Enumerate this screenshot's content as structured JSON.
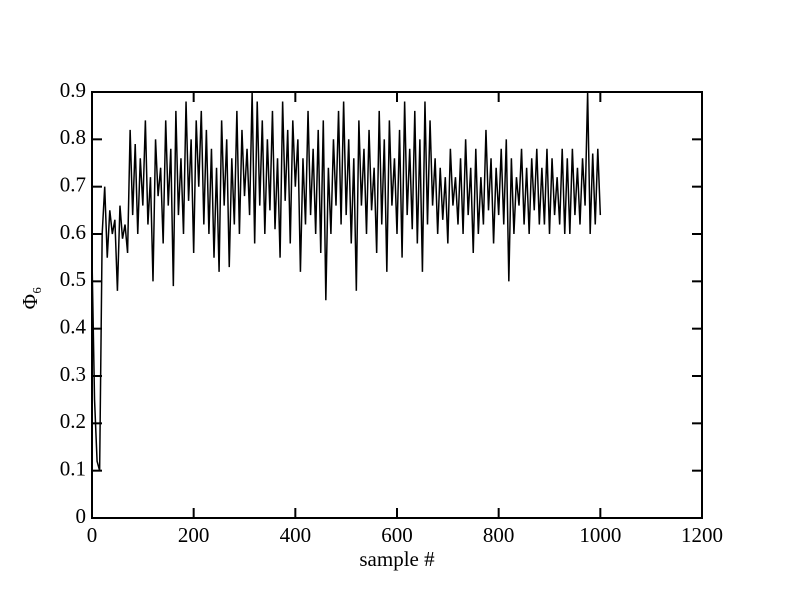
{
  "chart_data": {
    "type": "line",
    "xlabel": "sample #",
    "ylabel": "Φ₆",
    "xlim": [
      0,
      1200
    ],
    "xticks": [
      0,
      200,
      400,
      600,
      800,
      1000,
      1200
    ],
    "ylim": [
      0,
      0.9
    ],
    "yticks": [
      0,
      0.1,
      0.2,
      0.3,
      0.4,
      0.5,
      0.6,
      0.7,
      0.8,
      0.9
    ],
    "x": [
      0,
      5,
      10,
      15,
      20,
      25,
      30,
      35,
      40,
      45,
      50,
      55,
      60,
      65,
      70,
      75,
      80,
      85,
      90,
      95,
      100,
      105,
      110,
      115,
      120,
      125,
      130,
      135,
      140,
      145,
      150,
      155,
      160,
      165,
      170,
      175,
      180,
      185,
      190,
      195,
      200,
      205,
      210,
      215,
      220,
      225,
      230,
      235,
      240,
      245,
      250,
      255,
      260,
      265,
      270,
      275,
      280,
      285,
      290,
      295,
      300,
      305,
      310,
      315,
      320,
      325,
      330,
      335,
      340,
      345,
      350,
      355,
      360,
      365,
      370,
      375,
      380,
      385,
      390,
      395,
      400,
      405,
      410,
      415,
      420,
      425,
      430,
      435,
      440,
      445,
      450,
      455,
      460,
      465,
      470,
      475,
      480,
      485,
      490,
      495,
      500,
      505,
      510,
      515,
      520,
      525,
      530,
      535,
      540,
      545,
      550,
      555,
      560,
      565,
      570,
      575,
      580,
      585,
      590,
      595,
      600,
      605,
      610,
      615,
      620,
      625,
      630,
      635,
      640,
      645,
      650,
      655,
      660,
      665,
      670,
      675,
      680,
      685,
      690,
      695,
      700,
      705,
      710,
      715,
      720,
      725,
      730,
      735,
      740,
      745,
      750,
      755,
      760,
      765,
      770,
      775,
      780,
      785,
      790,
      795,
      800,
      805,
      810,
      815,
      820,
      825,
      830,
      835,
      840,
      845,
      850,
      855,
      860,
      865,
      870,
      875,
      880,
      885,
      890,
      895,
      900,
      905,
      910,
      915,
      920,
      925,
      930,
      935,
      940,
      945,
      950,
      955,
      960,
      965,
      970,
      975,
      980,
      985,
      990,
      995,
      1000
    ],
    "series": [
      {
        "color": "#000000",
        "values": [
          0.55,
          0.25,
          0.12,
          0.1,
          0.6,
          0.7,
          0.55,
          0.65,
          0.6,
          0.63,
          0.48,
          0.66,
          0.59,
          0.62,
          0.56,
          0.82,
          0.64,
          0.79,
          0.6,
          0.76,
          0.66,
          0.84,
          0.62,
          0.72,
          0.5,
          0.8,
          0.68,
          0.74,
          0.58,
          0.84,
          0.66,
          0.78,
          0.49,
          0.86,
          0.64,
          0.76,
          0.6,
          0.88,
          0.67,
          0.8,
          0.56,
          0.84,
          0.7,
          0.86,
          0.62,
          0.82,
          0.6,
          0.78,
          0.55,
          0.74,
          0.52,
          0.84,
          0.66,
          0.8,
          0.53,
          0.76,
          0.62,
          0.86,
          0.6,
          0.82,
          0.68,
          0.78,
          0.64,
          0.9,
          0.58,
          0.88,
          0.66,
          0.84,
          0.6,
          0.8,
          0.65,
          0.86,
          0.61,
          0.76,
          0.55,
          0.88,
          0.67,
          0.82,
          0.58,
          0.84,
          0.7,
          0.8,
          0.52,
          0.76,
          0.62,
          0.86,
          0.64,
          0.78,
          0.6,
          0.82,
          0.56,
          0.84,
          0.46,
          0.74,
          0.6,
          0.8,
          0.66,
          0.86,
          0.62,
          0.88,
          0.64,
          0.8,
          0.58,
          0.76,
          0.48,
          0.84,
          0.66,
          0.78,
          0.6,
          0.82,
          0.65,
          0.74,
          0.56,
          0.86,
          0.62,
          0.8,
          0.52,
          0.84,
          0.66,
          0.76,
          0.6,
          0.82,
          0.55,
          0.88,
          0.64,
          0.78,
          0.61,
          0.86,
          0.58,
          0.8,
          0.52,
          0.88,
          0.62,
          0.84,
          0.66,
          0.76,
          0.6,
          0.74,
          0.63,
          0.72,
          0.58,
          0.78,
          0.66,
          0.72,
          0.62,
          0.76,
          0.6,
          0.8,
          0.64,
          0.74,
          0.56,
          0.78,
          0.6,
          0.72,
          0.62,
          0.82,
          0.65,
          0.76,
          0.58,
          0.74,
          0.64,
          0.78,
          0.62,
          0.8,
          0.5,
          0.76,
          0.6,
          0.72,
          0.66,
          0.78,
          0.62,
          0.74,
          0.6,
          0.76,
          0.65,
          0.78,
          0.62,
          0.74,
          0.62,
          0.78,
          0.6,
          0.76,
          0.64,
          0.72,
          0.62,
          0.78,
          0.6,
          0.76,
          0.6,
          0.78,
          0.64,
          0.74,
          0.62,
          0.76,
          0.66,
          0.9,
          0.6,
          0.77,
          0.62,
          0.78,
          0.64
        ]
      }
    ]
  }
}
